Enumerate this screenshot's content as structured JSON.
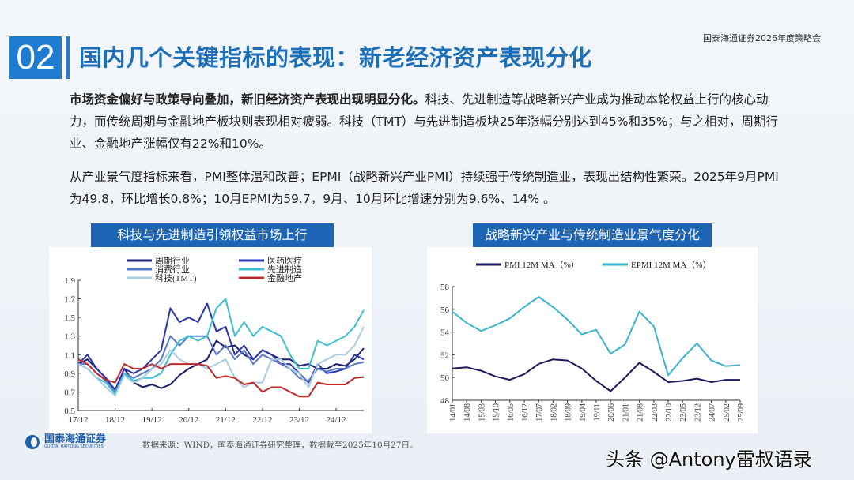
{
  "header": {
    "section_number": "02",
    "title": "国内几个关键指标的表现：新老经济资产表现分化",
    "conference": "国泰海通证券2026年度策略会"
  },
  "body": {
    "p1_bold": "市场资金偏好与政策导向叠加，新旧经济资产表现出现明显分化。",
    "p1_rest": "科技、先进制造等战略新兴产业成为推动本轮权益上行的核心动力，而传统周期与金融地产板块则表现相对疲弱。科技（TMT）与先进制造板块25年涨幅分别达到45%和35%；与之相对，周期行业、金融地产涨幅仅有22%和10%。",
    "p2": "从产业景气度指标来看，PMI整体温和改善；EPMI（战略新兴产业PMI）持续强于传统制造业，表现出结构性繁荣。2025年9月PMI为49.8，环比增长0.8%；10月EPMI为59.7，9月、10月环比增速分别为9.6%、14% 。"
  },
  "footer": {
    "logo": "国泰海通证券",
    "logo_sub": "GUOTAI HAITONG SECURITIES",
    "source": "数据来源：WIND，国泰海通证券研究整理，数据截至2025年10月27日。",
    "watermark": "头条 @Antony雷叔语录"
  },
  "chart_data": [
    {
      "type": "line",
      "title": "科技与先进制造引领权益市场上行",
      "ylim": [
        0.5,
        1.9
      ],
      "yticks": [
        "0.5",
        "0.7",
        "0.9",
        "1.1",
        "1.3",
        "1.5",
        "1.7",
        "1.9"
      ],
      "xticks": [
        "17/12",
        "18/12",
        "19/12",
        "20/12",
        "21/12",
        "22/12",
        "23/12",
        "24/12"
      ],
      "x": [
        "17/12",
        "18/03",
        "18/06",
        "18/09",
        "18/12",
        "19/03",
        "19/06",
        "19/09",
        "19/12",
        "20/03",
        "20/06",
        "20/09",
        "20/12",
        "21/03",
        "21/06",
        "21/09",
        "21/12",
        "22/03",
        "22/06",
        "22/09",
        "22/12",
        "23/03",
        "23/06",
        "23/09",
        "23/12",
        "24/03",
        "24/06",
        "24/09",
        "24/12",
        "25/03",
        "25/06",
        "25/09"
      ],
      "legend": "top",
      "series": [
        {
          "name": "周期行业",
          "color": "#1b1f6e",
          "values": [
            1.0,
            1.05,
            0.95,
            0.85,
            0.72,
            0.95,
            0.8,
            0.75,
            0.78,
            0.74,
            0.78,
            0.88,
            0.95,
            1.0,
            1.05,
            1.25,
            1.18,
            1.2,
            1.1,
            1.05,
            1.15,
            1.1,
            1.05,
            1.05,
            0.98,
            1.0,
            0.95,
            0.95,
            1.0,
            0.98,
            1.05,
            1.17
          ]
        },
        {
          "name": "医药医疗",
          "color": "#2b34b0",
          "values": [
            1.0,
            1.1,
            0.95,
            0.85,
            0.72,
            0.95,
            0.9,
            0.95,
            1.05,
            1.15,
            1.6,
            1.45,
            1.5,
            1.45,
            1.65,
            1.35,
            1.4,
            1.1,
            1.2,
            1.05,
            1.15,
            1.1,
            1.0,
            1.0,
            0.9,
            0.8,
            1.0,
            0.9,
            0.92,
            0.95,
            1.1,
            1.05
          ]
        },
        {
          "name": "消费行业",
          "color": "#5a78c8",
          "values": [
            1.0,
            1.0,
            0.9,
            0.82,
            0.7,
            0.9,
            0.85,
            0.9,
            0.95,
            1.05,
            1.3,
            1.2,
            1.3,
            1.3,
            1.3,
            1.1,
            1.2,
            1.05,
            1.15,
            1.0,
            1.1,
            1.05,
            1.0,
            0.95,
            0.85,
            0.82,
            0.95,
            0.92,
            0.95,
            0.95,
            1.0,
            1.02
          ]
        },
        {
          "name": "先进制造",
          "color": "#3cc0d0",
          "values": [
            1.0,
            0.95,
            0.85,
            0.8,
            0.68,
            0.9,
            0.82,
            0.85,
            0.85,
            0.9,
            1.1,
            1.25,
            1.3,
            1.25,
            1.3,
            1.6,
            1.7,
            1.3,
            1.45,
            1.3,
            1.4,
            1.35,
            1.3,
            1.1,
            0.95,
            0.95,
            1.25,
            1.2,
            1.25,
            1.3,
            1.4,
            1.58
          ]
        },
        {
          "name": "科技(TMT)",
          "color": "#a8cce0",
          "values": [
            1.0,
            0.95,
            0.85,
            0.75,
            0.66,
            0.88,
            0.8,
            0.85,
            0.95,
            1.0,
            1.15,
            1.05,
            1.0,
            1.0,
            0.95,
            1.0,
            1.05,
            0.85,
            0.75,
            0.8,
            0.8,
            1.05,
            1.05,
            0.95,
            0.9,
            0.75,
            1.0,
            1.05,
            1.1,
            1.1,
            1.2,
            1.4
          ]
        },
        {
          "name": "金融地产",
          "color": "#c0282a",
          "values": [
            1.05,
            1.0,
            0.9,
            0.83,
            0.8,
            1.0,
            0.95,
            0.95,
            1.0,
            0.95,
            1.0,
            1.0,
            1.0,
            1.0,
            0.98,
            0.85,
            0.87,
            0.85,
            0.78,
            0.8,
            0.7,
            0.75,
            0.75,
            0.7,
            0.65,
            0.65,
            0.8,
            0.78,
            0.78,
            0.78,
            0.85,
            0.86
          ]
        }
      ]
    },
    {
      "type": "line",
      "title": "战略新兴产业与传统制造业景气度分化",
      "ylim": [
        48,
        58
      ],
      "yticks": [
        "48",
        "50",
        "52",
        "54",
        "56",
        "58"
      ],
      "x": [
        "14/01",
        "14/08",
        "15/03",
        "15/10",
        "16/05",
        "16/12",
        "17/07",
        "18/02",
        "18/09",
        "19/04",
        "19/11",
        "20/06",
        "21/01",
        "21/08",
        "22/03",
        "22/10",
        "23/05",
        "23/12",
        "24/07",
        "25/02",
        "25/09"
      ],
      "legend": "top",
      "series": [
        {
          "name": "PMI 12M MA（%）",
          "color": "#1b1a5e",
          "values": [
            50.8,
            50.9,
            50.6,
            50.1,
            49.8,
            50.3,
            51.2,
            51.6,
            51.5,
            50.8,
            49.7,
            48.8,
            50.0,
            51.3,
            50.5,
            49.6,
            49.7,
            49.9,
            49.6,
            49.8,
            49.8
          ]
        },
        {
          "name": "EPMI 12M MA（%）",
          "color": "#3bb4d0",
          "values": [
            55.8,
            54.8,
            54.1,
            54.6,
            55.2,
            56.2,
            57.1,
            56.2,
            55.1,
            53.8,
            54.2,
            52.1,
            52.9,
            55.8,
            54.5,
            50.2,
            51.7,
            53.0,
            51.5,
            51.0,
            51.1
          ]
        }
      ]
    }
  ]
}
